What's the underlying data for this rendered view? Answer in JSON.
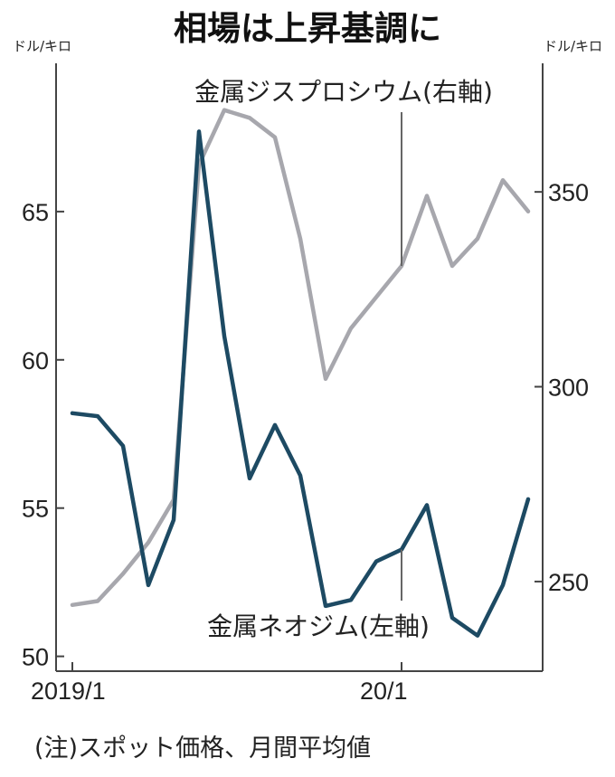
{
  "chart_data": {
    "type": "line",
    "title": "相場は上昇基調に",
    "left_unit": "ドル/キロ",
    "right_unit": "ドル/キロ",
    "x_labels": [
      "2019/1",
      "20/1"
    ],
    "x_label_index": [
      0,
      13
    ],
    "left_axis": {
      "ylim": [
        49.5,
        70
      ],
      "ticks": [
        50,
        55,
        60,
        65
      ]
    },
    "right_axis": {
      "ylim": [
        227,
        383
      ],
      "ticks": [
        250,
        300,
        350
      ]
    },
    "series": [
      {
        "name": "金属ネオジム(左軸)",
        "axis": "left",
        "color": "#1d4a63",
        "values": [
          58.2,
          58.1,
          57.1,
          52.4,
          54.6,
          67.7,
          60.8,
          56.0,
          57.8,
          56.1,
          51.7,
          51.9,
          53.2,
          53.6,
          55.1,
          51.3,
          50.7,
          52.4,
          55.3
        ]
      },
      {
        "name": "金属ジスプロシウム(右軸)",
        "axis": "right",
        "color": "#a7a7ad",
        "values": [
          244,
          245,
          252,
          260,
          271,
          357,
          371,
          369,
          364,
          338,
          302,
          315,
          323,
          331,
          349,
          331,
          338,
          353,
          345
        ]
      }
    ],
    "note": "(注)スポット価格、月間平均値"
  }
}
